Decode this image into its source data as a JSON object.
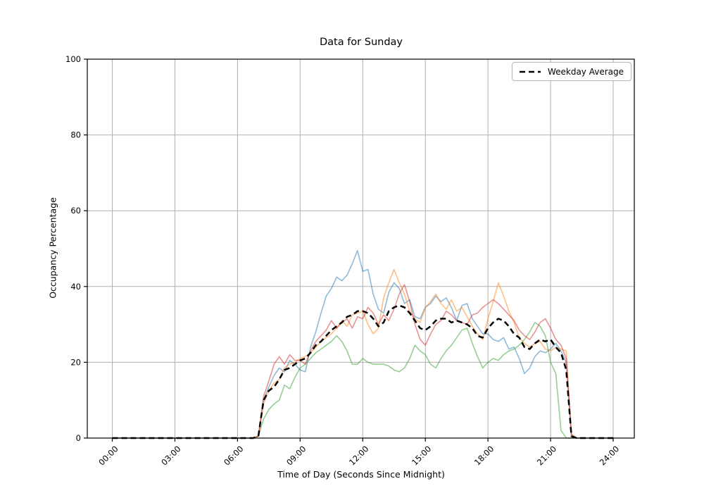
{
  "figure": {
    "title": "Data for Sunday",
    "background": "#ffffff"
  },
  "axes": {
    "xlabel": "Time of Day (Seconds Since Midnight)",
    "ylabel": "Occupancy Percentage",
    "x_tick_hours": [
      0,
      3,
      6,
      9,
      12,
      15,
      18,
      21,
      24
    ],
    "x_tick_labels": [
      "00:00",
      "03:00",
      "06:00",
      "09:00",
      "12:00",
      "15:00",
      "18:00",
      "21:00",
      "24:00"
    ],
    "y_ticks": [
      0,
      20,
      40,
      60,
      80,
      100
    ],
    "grid": true,
    "grid_color": "#b0b0b0",
    "spine_color": "#000000"
  },
  "legend": {
    "label": "Weekday Average",
    "position": "upper right"
  },
  "chart_data": {
    "type": "line",
    "title": "Data for Sunday",
    "xlabel": "Time of Day (Seconds Since Midnight)",
    "ylabel": "Occupancy Percentage",
    "x_unit": "hours_since_midnight",
    "x_start": 0,
    "x_step": 0.25,
    "xlim_hours": [
      -1.15,
      25.0
    ],
    "ylim": [
      0,
      100
    ],
    "grid": true,
    "legend_position": "upper right",
    "series": [
      {
        "name": "series-1-blue",
        "color": "#1f77b4",
        "alpha": 0.5,
        "values": [
          0,
          0,
          0,
          0,
          0,
          0,
          0,
          0,
          0,
          0,
          0,
          0,
          0,
          0,
          0,
          0,
          0,
          0,
          0,
          0,
          0,
          0,
          0,
          0,
          0,
          0,
          0,
          0,
          0.5,
          10,
          13.5,
          16.5,
          18.5,
          17.5,
          20.5,
          19.5,
          18,
          17.5,
          24,
          28,
          33,
          37.5,
          39.5,
          42.5,
          41.5,
          43,
          46,
          49.5,
          44,
          44.5,
          38,
          34,
          33,
          38.5,
          41,
          39.5,
          35.5,
          36.5,
          32,
          31.5,
          34.5,
          35.5,
          37.5,
          36,
          37,
          34.5,
          31,
          35,
          35.5,
          31.5,
          29.5,
          27.5,
          27.5,
          26,
          25.5,
          26.5,
          23.5,
          24,
          21,
          17,
          18.5,
          21.5,
          23,
          22.5,
          23.5,
          25,
          23,
          20,
          1,
          0,
          0,
          0,
          0,
          0,
          0,
          0,
          0
        ]
      },
      {
        "name": "series-2-orange",
        "color": "#ff7f0e",
        "alpha": 0.5,
        "values": [
          0,
          0,
          0,
          0,
          0,
          0,
          0,
          0,
          0,
          0,
          0,
          0,
          0,
          0,
          0,
          0,
          0,
          0,
          0,
          0,
          0,
          0,
          0,
          0,
          0,
          0,
          0,
          0,
          0.5,
          9,
          12.5,
          14.5,
          15.5,
          18.5,
          19.5,
          20,
          21,
          21.5,
          22.5,
          24,
          25.5,
          26.5,
          27.5,
          29,
          31,
          29.5,
          32.5,
          33,
          33.5,
          30,
          27.5,
          29,
          37,
          41,
          44.5,
          41,
          38,
          33.5,
          31.5,
          30.5,
          34.5,
          36,
          38,
          35.5,
          34,
          36.5,
          33.5,
          34.5,
          32,
          29.5,
          27.5,
          26,
          31.5,
          36,
          41,
          37.5,
          33.5,
          30.5,
          26.5,
          25,
          24,
          25,
          25.5,
          23.5,
          23,
          24,
          23.5,
          23,
          1,
          0,
          0,
          0,
          0,
          0,
          0,
          0,
          0
        ]
      },
      {
        "name": "series-3-green",
        "color": "#2ca02c",
        "alpha": 0.5,
        "values": [
          0,
          0,
          0,
          0,
          0,
          0,
          0,
          0,
          0,
          0,
          0,
          0,
          0,
          0,
          0,
          0,
          0,
          0,
          0,
          0,
          0,
          0,
          0,
          0,
          0,
          0,
          0,
          0,
          0.5,
          5,
          7.5,
          9,
          10,
          14,
          13,
          16,
          18.5,
          19.5,
          21,
          22.5,
          23.5,
          24.5,
          25.5,
          27,
          25.5,
          23,
          19.5,
          19.5,
          21,
          20,
          19.5,
          19.5,
          19.5,
          19,
          18,
          17.5,
          18.5,
          21,
          24.5,
          23,
          22,
          19.5,
          18.5,
          21,
          23,
          24.5,
          26.5,
          28.5,
          29,
          25,
          21.5,
          18.5,
          20,
          21,
          20.5,
          22,
          23,
          23.5,
          24.5,
          26,
          28,
          30.5,
          29.5,
          27,
          20,
          17,
          2,
          0,
          0,
          0,
          0,
          0,
          0,
          0,
          0,
          0,
          0
        ]
      },
      {
        "name": "series-4-red",
        "color": "#d62728",
        "alpha": 0.5,
        "values": [
          0,
          0,
          0,
          0,
          0,
          0,
          0,
          0,
          0,
          0,
          0,
          0,
          0,
          0,
          0,
          0,
          0,
          0,
          0,
          0,
          0,
          0,
          0,
          0,
          0,
          0,
          0,
          0,
          0.5,
          11,
          15,
          19.5,
          21.5,
          19.5,
          22,
          20.5,
          20.5,
          19.5,
          23,
          25.5,
          27,
          28.5,
          31,
          29,
          30.5,
          31.5,
          29,
          32,
          31.5,
          34.5,
          33,
          30,
          32.5,
          31,
          34,
          38,
          40.5,
          36,
          30,
          26,
          24.5,
          27.5,
          30,
          31,
          33.5,
          32.5,
          31,
          30.5,
          30,
          32.5,
          33,
          34.5,
          35.5,
          36.5,
          35.5,
          34,
          32.5,
          31,
          28.5,
          27,
          26,
          28,
          30.5,
          31.5,
          29,
          26,
          24.5,
          21,
          0.5,
          0,
          0,
          0,
          0,
          0,
          0,
          0,
          0
        ]
      }
    ],
    "average_series": {
      "name": "weekday-average",
      "legend": "Weekday Average",
      "color": "#000000",
      "style": "dashed",
      "linewidth": 2.5,
      "values": [
        0,
        0,
        0,
        0,
        0,
        0,
        0,
        0,
        0,
        0,
        0,
        0,
        0,
        0,
        0,
        0,
        0,
        0,
        0,
        0,
        0,
        0,
        0,
        0,
        0,
        0,
        0,
        0,
        0.5,
        10,
        12.5,
        13.5,
        15.5,
        18,
        18.5,
        19.5,
        20.5,
        21,
        22.5,
        24.5,
        25.5,
        27,
        28.5,
        29.5,
        30.5,
        32,
        32.5,
        33.5,
        33.5,
        33,
        31.5,
        29.5,
        30.5,
        33.5,
        34.5,
        35,
        34.5,
        33,
        31,
        29,
        28.5,
        29.5,
        31,
        31.5,
        31.5,
        30.5,
        31,
        30.5,
        30,
        29,
        27,
        26.5,
        29,
        30.5,
        31.5,
        31,
        29.5,
        27.5,
        26.5,
        24,
        23.5,
        25,
        26,
        25.5,
        26,
        24,
        22.5,
        18,
        0.5,
        0,
        0,
        0,
        0,
        0,
        0,
        0,
        0
      ]
    }
  }
}
